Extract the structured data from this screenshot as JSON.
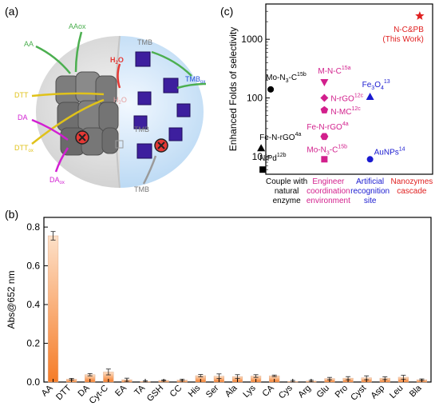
{
  "panels": {
    "a": "(a)",
    "b": "(b)",
    "c": "(c)"
  },
  "schematic": {
    "labels": {
      "aaox": "AAox",
      "aa": "AA",
      "h2o_1": "H",
      "h2o_1_sub": "2",
      "h2o_1_end": "O",
      "h2o_2": "H",
      "h2o_2_sub": "2",
      "h2o_2_end": "O",
      "tmb_1": "TMB",
      "tmb_2": "TMB",
      "tmb_3": "TMB",
      "tmbox": "TMB",
      "tmbox_sub": "ox",
      "dtt": "DTT",
      "dttox": "DTT",
      "dttox_sub": "ox",
      "da": "DA",
      "daox": "DA",
      "daox_sub": "ox"
    },
    "colors": {
      "aa": "#4caf50",
      "dtt": "#e0c21a",
      "da": "#d21fd2",
      "tmb": "#9a9a9a",
      "h2o": "#e53935",
      "tmbox": "#1f4fd8",
      "cube": "#3d1f9e"
    }
  },
  "chart_data": [
    {
      "type": "bar",
      "ylabel": "Abs@652 nm",
      "ylim": [
        0,
        0.85
      ],
      "yticks": [
        0.0,
        0.2,
        0.4,
        0.6,
        0.8
      ],
      "ytick_labels": [
        "0.0",
        "0.2",
        "0.4",
        "0.6",
        "0.8"
      ],
      "categories": [
        "AA",
        "DTT",
        "DA",
        "Cyt-C",
        "EA",
        "TA",
        "GSH",
        "CC",
        "His",
        "Ser",
        "Ala",
        "Lys",
        "CA",
        "Cys",
        "Arg",
        "Glu",
        "Pro",
        "Cyst",
        "Asp",
        "Leu",
        "Bla"
      ],
      "values": [
        0.755,
        0.015,
        0.038,
        0.052,
        0.012,
        0.003,
        0.008,
        0.01,
        0.033,
        0.03,
        0.028,
        0.031,
        0.032,
        0.003,
        0.005,
        0.018,
        0.02,
        0.022,
        0.02,
        0.025,
        0.012
      ],
      "errors": [
        0.022,
        0.004,
        0.006,
        0.015,
        0.008,
        0.003,
        0.003,
        0.004,
        0.006,
        0.012,
        0.01,
        0.007,
        0.004,
        0.005,
        0.004,
        0.006,
        0.008,
        0.01,
        0.007,
        0.01,
        0.004
      ]
    },
    {
      "type": "scatter",
      "ylabel": "Enhanced Folds of selectivity",
      "yscale": "log",
      "ylim": [
        5,
        4000
      ],
      "yticks": [
        10,
        100,
        1000
      ],
      "ytick_labels": [
        "10",
        "100",
        "1000"
      ],
      "categories": [
        {
          "lines": [
            "Couple with",
            "natural",
            "enzyme"
          ],
          "color": "#000000"
        },
        {
          "lines": [
            "Engineer",
            "coordination",
            "environment"
          ],
          "color": "#d21f8c"
        },
        {
          "lines": [
            "Artificial",
            "recognition",
            "site"
          ],
          "color": "#1a1ad0"
        },
        {
          "lines": [
            "Nanozymes",
            "cascade"
          ],
          "color": "#e02020"
        }
      ],
      "points": [
        {
          "x": 1,
          "y": 14,
          "marker": "triangle",
          "color": "#000000",
          "label": "Fe-N-rGO",
          "sup": "4a"
        },
        {
          "x": 1,
          "y": 6,
          "marker": "square",
          "color": "#000000",
          "label": "NiPd",
          "sup": "12b"
        },
        {
          "x": 1,
          "y": 140,
          "marker": "circle",
          "color": "#000000",
          "label": "Mo-N",
          "sub": "3",
          "after": "-C",
          "sup": "15b"
        },
        {
          "x": 2,
          "y": 185,
          "marker": "triangle-down",
          "color": "#d21f8c",
          "label": "M-N-C",
          "sup": "15a"
        },
        {
          "x": 2,
          "y": 100,
          "marker": "diamond",
          "color": "#d21f8c",
          "label": "N-rGO",
          "sup": "12c"
        },
        {
          "x": 2,
          "y": 62,
          "marker": "pentagon",
          "color": "#d21f8c",
          "label": "N-MC",
          "sup": "12c"
        },
        {
          "x": 2,
          "y": 22,
          "marker": "hexagon",
          "color": "#d21f8c",
          "label": "Fe-N-rGO",
          "sup": "4a"
        },
        {
          "x": 2,
          "y": 9,
          "marker": "square",
          "color": "#d21f8c",
          "label": "Mo-N",
          "sub": "3",
          "after": "-C",
          "sup": "15b"
        },
        {
          "x": 3,
          "y": 105,
          "marker": "triangle",
          "color": "#1a1ad0",
          "label": "Fe",
          "sub": "3",
          "after": "O",
          "sub2": "4",
          "sup": "13"
        },
        {
          "x": 3,
          "y": 9,
          "marker": "circle",
          "color": "#1a1ad0",
          "label": "AuNPs",
          "sup": "14"
        },
        {
          "x": 4,
          "y": 2500,
          "marker": "star",
          "color": "#e02020",
          "label": "N-C&PB",
          "line2": "(This Work)"
        }
      ]
    }
  ]
}
